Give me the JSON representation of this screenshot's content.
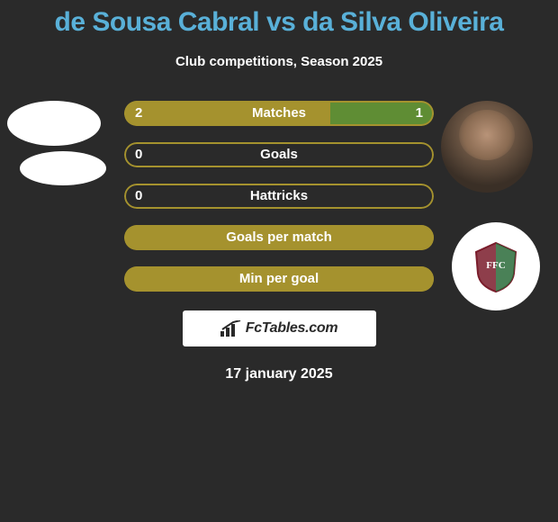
{
  "title": "de Sousa Cabral vs da Silva Oliveira",
  "subtitle": "Club competitions, Season 2025",
  "date": "17 january 2025",
  "watermark": "FcTables.com",
  "colors": {
    "title": "#59b0d8",
    "bg": "#2a2a2a",
    "bar_fill": "#a5922e",
    "bar_border": "#a5922e",
    "highlight_right": "#5f8d34",
    "text": "#ffffff"
  },
  "left_avatars": [
    {
      "shape": "ellipse",
      "bg": "#ffffff"
    },
    {
      "shape": "ellipse",
      "bg": "#ffffff"
    }
  ],
  "right_avatars": [
    {
      "type": "player-photo"
    },
    {
      "type": "club-crest",
      "crest_colors": [
        "#7a1c2b",
        "#2a6b3a",
        "#ffffff"
      ]
    }
  ],
  "bars": [
    {
      "label": "Matches",
      "left_value": "2",
      "right_value": "1",
      "left_pct": 66.6,
      "right_pct": 33.4,
      "left_fill": "#a5922e",
      "right_fill": "#5f8d34",
      "border": "#a5922e",
      "show_values": true
    },
    {
      "label": "Goals",
      "left_value": "0",
      "right_value": "",
      "left_pct": 0,
      "right_pct": 0,
      "left_fill": "#a5922e",
      "right_fill": "#a5922e",
      "border": "#a5922e",
      "show_values": true
    },
    {
      "label": "Hattricks",
      "left_value": "0",
      "right_value": "",
      "left_pct": 0,
      "right_pct": 0,
      "left_fill": "#a5922e",
      "right_fill": "#a5922e",
      "border": "#a5922e",
      "show_values": true
    },
    {
      "label": "Goals per match",
      "left_value": "",
      "right_value": "",
      "left_pct": 100,
      "right_pct": 0,
      "left_fill": "#a5922e",
      "right_fill": "#a5922e",
      "border": "#a5922e",
      "show_values": false
    },
    {
      "label": "Min per goal",
      "left_value": "",
      "right_value": "",
      "left_pct": 100,
      "right_pct": 0,
      "left_fill": "#a5922e",
      "right_fill": "#a5922e",
      "border": "#a5922e",
      "show_values": false
    }
  ]
}
